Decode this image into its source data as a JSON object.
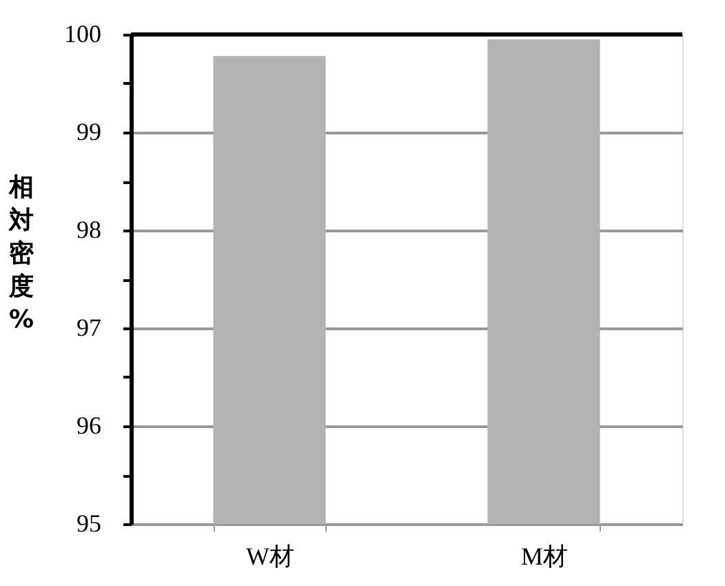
{
  "chart_data": {
    "type": "bar",
    "ylabel": "相対密度%",
    "categories": [
      "W材",
      "M材"
    ],
    "values": [
      99.78,
      99.95
    ],
    "color": "#b3b3b3",
    "ylim": [
      95,
      100
    ],
    "yticks": [
      95,
      {
        "value": 95.5,
        "label": null
      },
      96,
      {
        "value": 96.5,
        "label": null
      },
      97,
      {
        "value": 97.5,
        "label": null
      },
      98,
      {
        "value": 98.5,
        "label": null
      },
      99,
      {
        "value": 99.5,
        "label": null
      },
      100
    ],
    "grid": "y"
  }
}
